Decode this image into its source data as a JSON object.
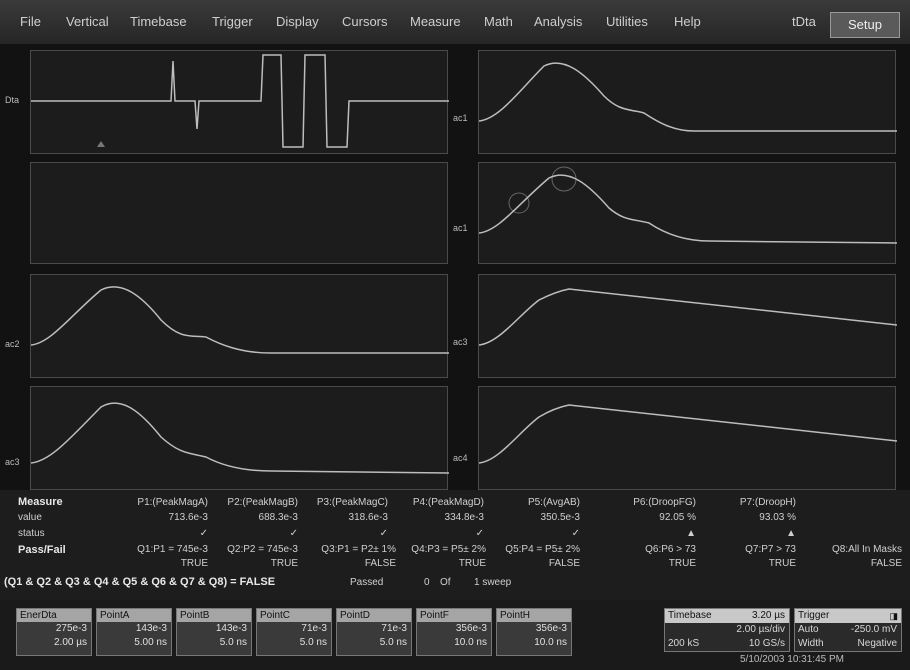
{
  "menu": {
    "items": [
      "File",
      "Vertical",
      "Timebase",
      "Trigger",
      "Display",
      "Cursors",
      "Measure",
      "Math",
      "Analysis",
      "Utilities",
      "Help"
    ],
    "right_label": "tDta",
    "setup_label": "Setup"
  },
  "panels": {
    "p1_label": "Dta",
    "p2_label": "ac1",
    "p4_label": "ac2",
    "p5_label": "ac1",
    "p6_label": "ac3",
    "p7_label": "ac3",
    "p8_label": "ac4"
  },
  "measure": {
    "title": "Measure",
    "row_value": "value",
    "row_status": "status",
    "row_passfail": "Pass/Fail",
    "params": [
      {
        "name": "P1:(PeakMagA)",
        "value": "713.6e-3",
        "status": "✓"
      },
      {
        "name": "P2:(PeakMagB)",
        "value": "688.3e-3",
        "status": "✓"
      },
      {
        "name": "P3:(PeakMagC)",
        "value": "318.6e-3",
        "status": "✓"
      },
      {
        "name": "P4:(PeakMagD)",
        "value": "334.8e-3",
        "status": "✓"
      },
      {
        "name": "P5:(AvgAB)",
        "value": "350.5e-3",
        "status": "✓"
      },
      {
        "name": "P6:(DroopFG)",
        "value": "92.05 %",
        "status": "▲"
      },
      {
        "name": "P7:(DroopH)",
        "value": "93.03 %",
        "status": "▲"
      }
    ],
    "tests": [
      {
        "label": "Q1:P1 = 745e-3",
        "result": "TRUE"
      },
      {
        "label": "Q2:P2 = 745e-3",
        "result": "TRUE"
      },
      {
        "label": "Q3:P1 = P2± 1%",
        "result": "FALSE"
      },
      {
        "label": "Q4:P3 = P5± 2%",
        "result": "TRUE"
      },
      {
        "label": "Q5:P4 = P5± 2%",
        "result": "FALSE"
      },
      {
        "label": "Q6:P6 > 73",
        "result": "TRUE"
      },
      {
        "label": "Q7:P7 > 73",
        "result": "TRUE"
      },
      {
        "label": "Q8:All In Masks",
        "result": "FALSE"
      }
    ],
    "summary_expr": "(Q1 & Q2 & Q3 & Q4 & Q5 & Q6 & Q7 & Q8) = FALSE",
    "passed_label": "Passed",
    "passed_count": "0",
    "of_label": "Of",
    "sweeps": "1 sweep"
  },
  "descriptors": [
    {
      "title": "EnerDta",
      "v1": "275e-3",
      "v2": "2.00 µs"
    },
    {
      "title": "PointA",
      "v1": "143e-3",
      "v2": "5.00 ns"
    },
    {
      "title": "PointB",
      "v1": "143e-3",
      "v2": "5.0 ns"
    },
    {
      "title": "PointC",
      "v1": "71e-3",
      "v2": "5.0 ns"
    },
    {
      "title": "PointD",
      "v1": "71e-3",
      "v2": "5.0 ns"
    },
    {
      "title": "PointF",
      "v1": "356e-3",
      "v2": "10.0 ns"
    },
    {
      "title": "PointH",
      "v1": "356e-3",
      "v2": "10.0 ns"
    }
  ],
  "timebase": {
    "title": "Timebase",
    "offset": "3.20 µs",
    "per_div": "2.00 µs/div",
    "samples": "200 kS",
    "rate": "10 GS/s"
  },
  "trigger": {
    "title": "Trigger",
    "mode": "Auto",
    "level": "-250.0 mV",
    "type": "Width",
    "slope": "Negative"
  },
  "datetime": "5/10/2003 10:31:45 PM",
  "colors": {
    "trace": "#bdbdbd",
    "background": "#1c1c1c",
    "grid": "#3a3a3a"
  }
}
